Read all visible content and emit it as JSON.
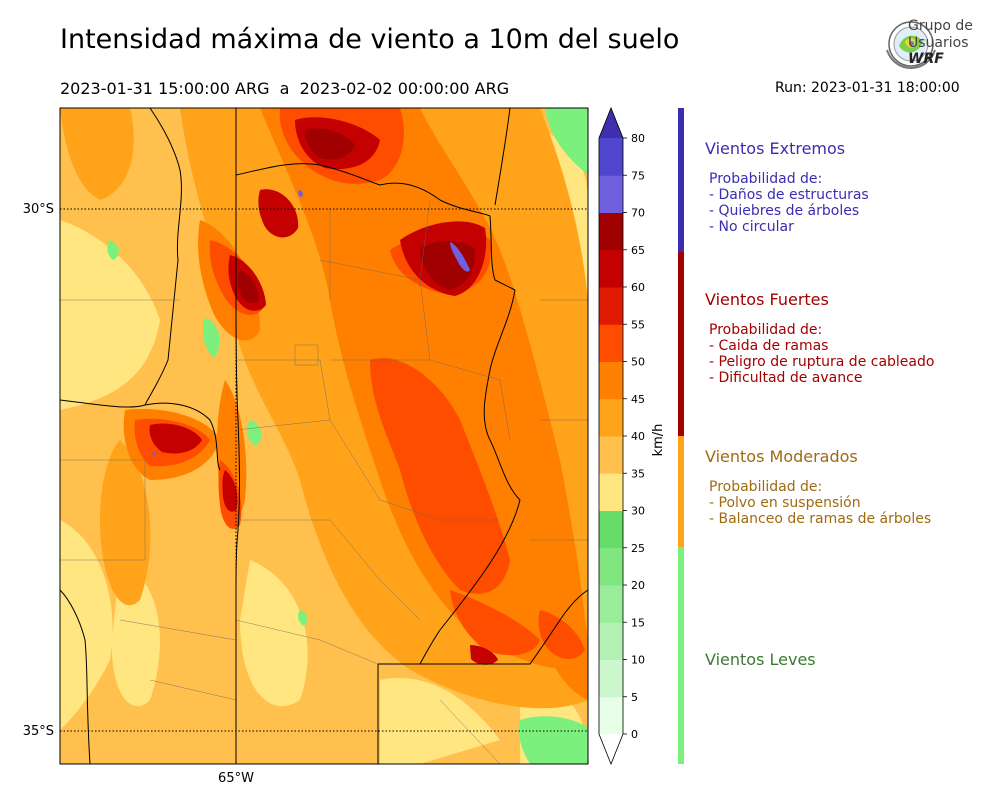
{
  "title": "Intensidad máxima de viento a 10m del suelo",
  "period": "2023-01-31 15:00:00 ARG  a  2023-02-02 00:00:00 ARG",
  "run": "Run: 2023-01-31 18:00:00",
  "logo": {
    "line1": "Grupo de",
    "line2": "Usuarios",
    "line3": "WRF"
  },
  "map": {
    "lat_labels": [
      "30°S",
      "35°S"
    ],
    "lon_labels": [
      "65°W"
    ],
    "gridlines": "dotted"
  },
  "colorbar": {
    "unit": "km/h",
    "ticks": [
      "0",
      "5",
      "10",
      "15",
      "20",
      "25",
      "30",
      "35",
      "40",
      "45",
      "50",
      "55",
      "60",
      "65",
      "70",
      "75",
      "80"
    ],
    "colors": [
      "#e6ffe6",
      "#ccf7cc",
      "#b3f0b3",
      "#99ec99",
      "#80e680",
      "#66dd66",
      "#ffe680",
      "#ffc04d",
      "#ffa31a",
      "#ff8000",
      "#ff4d00",
      "#e01a00",
      "#c40000",
      "#a10000",
      "#7060e0",
      "#5046d0",
      "#3f2fb0"
    ]
  },
  "categories": [
    {
      "name": "Vientos Extremos",
      "color": "#3a2db0",
      "bar_color": "#3a2db0",
      "heading": "Probabilidad de:",
      "items": [
        "- Daños de estructuras",
        "- Quiebres de árboles",
        "- No circular"
      ]
    },
    {
      "name": "Vientos Fuertes",
      "color": "#a30000",
      "bar_color": "#a30000",
      "heading": "Probabilidad de:",
      "items": [
        "- Caida de ramas",
        "- Peligro de ruptura de cableado",
        "- Dificultad de avance"
      ]
    },
    {
      "name": "Vientos Moderados",
      "color": "#a06a10",
      "bar_color": "#ffa31a",
      "heading": "Probabilidad de:",
      "items": [
        "- Polvo en suspensión",
        "- Balanceo de ramas de árboles"
      ]
    },
    {
      "name": "Vientos Leves",
      "color": "#3a7a30",
      "bar_color": "#7cf07c",
      "heading": "",
      "items": []
    }
  ]
}
